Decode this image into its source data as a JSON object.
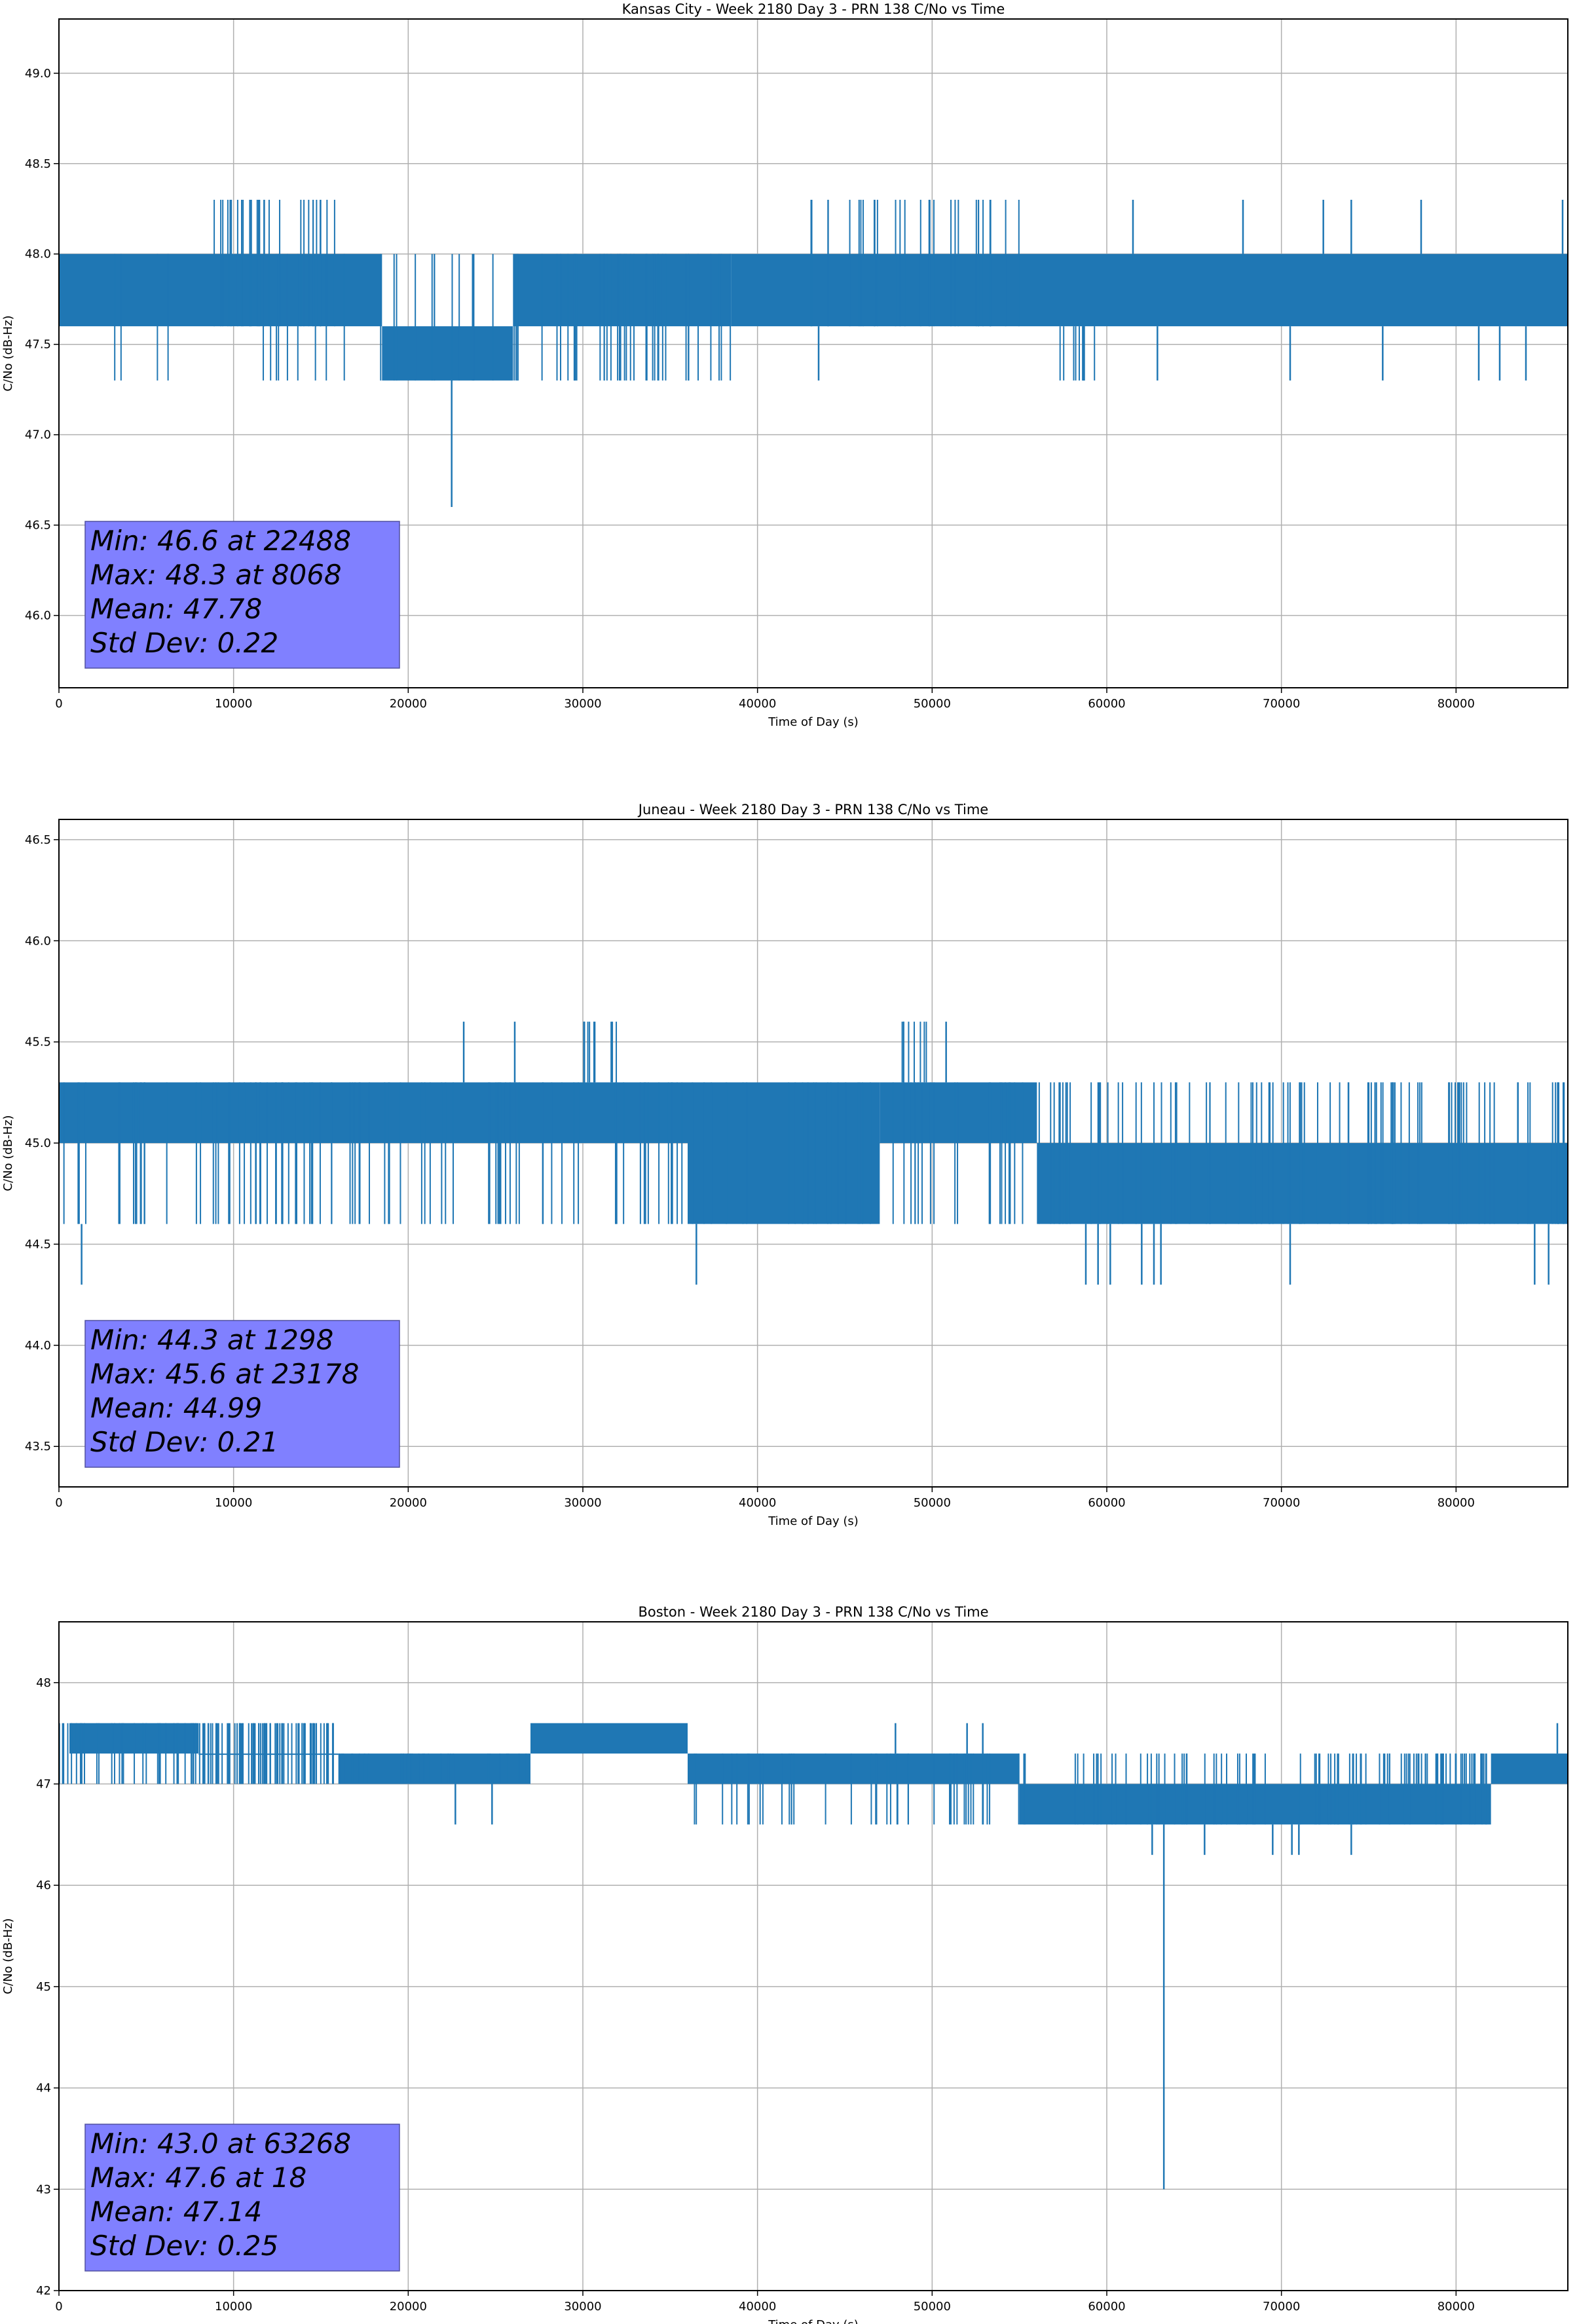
{
  "colors": {
    "line": "#1f77b4",
    "grid": "#b0b0b0",
    "statbox": "#8080ff"
  },
  "chart_data": [
    {
      "type": "line",
      "title": "Kansas City - Week 2180 Day 3 - PRN 138 C/No vs Time",
      "xlabel": "Time of Day (s)",
      "ylabel": "C/No (dB-Hz)",
      "xlim": [
        0,
        86400
      ],
      "ylim": [
        45.6,
        49.3
      ],
      "xticks": [
        0,
        10000,
        20000,
        30000,
        40000,
        50000,
        60000,
        70000,
        80000
      ],
      "yticks": [
        "46.0",
        "46.5",
        "47.0",
        "47.5",
        "48.0",
        "48.5",
        "49.0"
      ],
      "grid": true,
      "bands": [
        [
          0,
          18500,
          47.6,
          48.0
        ],
        [
          18500,
          26000,
          47.3,
          47.6
        ],
        [
          26000,
          38500,
          47.6,
          48.0
        ],
        [
          38500,
          86400,
          47.6,
          48.0
        ]
      ],
      "noise": [
        [
          0,
          18500,
          47.3,
          48.0,
          14
        ],
        [
          8000,
          16000,
          47.6,
          48.3,
          30
        ],
        [
          18500,
          26000,
          47.3,
          48.0,
          12
        ],
        [
          26000,
          38500,
          47.3,
          48.0,
          40
        ],
        [
          43000,
          55000,
          47.6,
          48.3,
          30
        ],
        [
          57000,
          59500,
          47.3,
          47.6,
          12
        ]
      ],
      "spikes": [
        [
          22488,
          46.6,
          47.3
        ],
        [
          62900,
          47.3,
          47.6
        ],
        [
          70500,
          47.3,
          47.6
        ],
        [
          75800,
          47.3,
          47.6
        ],
        [
          81300,
          47.3,
          47.6
        ],
        [
          82500,
          47.3,
          47.6
        ],
        [
          84000,
          47.3,
          47.6
        ],
        [
          61500,
          48.0,
          48.3
        ],
        [
          67800,
          48.0,
          48.3
        ],
        [
          72400,
          48.0,
          48.3
        ],
        [
          74000,
          48.0,
          48.3
        ],
        [
          78000,
          48.0,
          48.3
        ],
        [
          86100,
          48.0,
          48.3
        ],
        [
          43500,
          47.3,
          47.6
        ]
      ],
      "stats": [
        "Min: 46.6 at 22488",
        "Max: 48.3 at 8068",
        "Mean: 47.78",
        "Std Dev: 0.22"
      ]
    },
    {
      "type": "line",
      "title": "Juneau - Week 2180 Day 3 - PRN 138 C/No vs Time",
      "xlabel": "Time of Day (s)",
      "ylabel": "C/No (dB-Hz)",
      "xlim": [
        0,
        86400
      ],
      "ylim": [
        43.3,
        46.6
      ],
      "xticks": [
        0,
        10000,
        20000,
        30000,
        40000,
        50000,
        60000,
        70000,
        80000
      ],
      "yticks": [
        "43.5",
        "44.0",
        "44.5",
        "45.0",
        "45.5",
        "46.0",
        "46.5"
      ],
      "grid": true,
      "bands": [
        [
          0,
          36000,
          45.0,
          45.3
        ],
        [
          36000,
          47000,
          44.6,
          45.3
        ],
        [
          47000,
          56000,
          45.0,
          45.3
        ],
        [
          56000,
          86400,
          44.6,
          45.0
        ]
      ],
      "noise": [
        [
          0,
          36000,
          44.6,
          45.3,
          90
        ],
        [
          36000,
          47000,
          44.6,
          45.3,
          20
        ],
        [
          47000,
          56000,
          44.6,
          45.3,
          20
        ],
        [
          56000,
          86400,
          44.6,
          45.3,
          90
        ],
        [
          29800,
          33000,
          45.3,
          45.6,
          10
        ],
        [
          48200,
          49800,
          45.3,
          45.6,
          8
        ]
      ],
      "spikes": [
        [
          1298,
          44.3,
          44.6
        ],
        [
          23178,
          45.3,
          45.6
        ],
        [
          26100,
          45.3,
          45.6
        ],
        [
          50800,
          45.3,
          45.6
        ],
        [
          36500,
          44.3,
          44.6
        ],
        [
          58800,
          44.3,
          44.6
        ],
        [
          59500,
          44.3,
          44.6
        ],
        [
          60200,
          44.3,
          44.6
        ],
        [
          62000,
          44.3,
          44.6
        ],
        [
          62700,
          44.3,
          44.6
        ],
        [
          63100,
          44.3,
          44.6
        ],
        [
          70500,
          44.3,
          44.6
        ],
        [
          84500,
          44.3,
          44.6
        ],
        [
          85300,
          44.3,
          44.6
        ]
      ],
      "stats": [
        "Min: 44.3 at 1298",
        "Max: 45.6 at 23178",
        "Mean: 44.99",
        "Std Dev: 0.21"
      ]
    },
    {
      "type": "line",
      "title": "Boston - Week 2180 Day 3 - PRN 138 C/No vs Time",
      "xlabel": "Time of Day (s)",
      "ylabel": "C/No (dB-Hz)",
      "xlim": [
        0,
        86400
      ],
      "ylim": [
        42,
        48.6
      ],
      "xticks": [
        0,
        10000,
        20000,
        30000,
        40000,
        50000,
        60000,
        70000,
        80000
      ],
      "yticks": [
        "42",
        "43",
        "44",
        "45",
        "46",
        "47",
        "48"
      ],
      "grid": true,
      "bands": [
        [
          600,
          8000,
          47.3,
          47.6
        ],
        [
          8000,
          16000,
          47.3,
          47.3
        ],
        [
          16000,
          27000,
          47.0,
          47.3
        ],
        [
          27000,
          36000,
          47.3,
          47.6
        ],
        [
          36000,
          55000,
          47.0,
          47.3
        ],
        [
          55000,
          82000,
          46.6,
          47.0
        ],
        [
          82000,
          86400,
          47.0,
          47.3
        ]
      ],
      "noise": [
        [
          0,
          16000,
          47.0,
          47.6,
          50
        ],
        [
          8000,
          16000,
          47.0,
          47.6,
          60
        ],
        [
          16000,
          27000,
          47.0,
          47.3,
          30
        ],
        [
          36000,
          55000,
          46.6,
          47.3,
          40
        ],
        [
          55000,
          82000,
          46.6,
          47.3,
          70
        ],
        [
          75500,
          82000,
          47.0,
          47.3,
          30
        ]
      ],
      "spikes": [
        [
          63268,
          43.0,
          46.6
        ],
        [
          18,
          47.0,
          47.6
        ],
        [
          22700,
          46.6,
          47.0
        ],
        [
          24800,
          46.6,
          47.0
        ],
        [
          62600,
          46.3,
          46.6
        ],
        [
          65600,
          46.3,
          46.6
        ],
        [
          69500,
          46.3,
          46.6
        ],
        [
          70600,
          46.3,
          46.6
        ],
        [
          71000,
          46.3,
          46.6
        ],
        [
          74000,
          46.3,
          46.6
        ],
        [
          47900,
          47.3,
          47.6
        ],
        [
          52000,
          47.3,
          47.6
        ],
        [
          52900,
          47.3,
          47.6
        ],
        [
          85800,
          47.3,
          47.6
        ]
      ],
      "stats": [
        "Min: 43.0 at 63268",
        "Max: 47.6 at 18",
        "Mean: 47.14",
        "Std Dev: 0.25"
      ]
    }
  ]
}
